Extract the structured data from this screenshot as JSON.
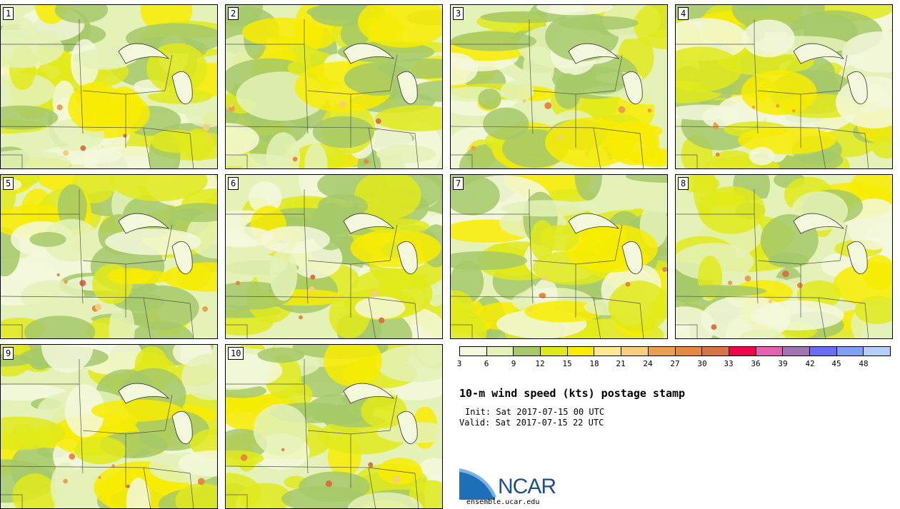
{
  "panels": [
    "1",
    "2",
    "3",
    "4",
    "5",
    "6",
    "7",
    "8",
    "9",
    "10"
  ],
  "colorbar": {
    "colors": [
      "#f3f8dc",
      "#e4f2b8",
      "#a6c96a",
      "#e0ea1b",
      "#f8ec00",
      "#fde98f",
      "#f7cd7e",
      "#eaa050",
      "#e68840",
      "#d77445",
      "#f0044a",
      "#e55fb0",
      "#a173b3",
      "#6b6ef5",
      "#7f9ff6",
      "#b5cdf9"
    ],
    "ticks": [
      "3",
      "6",
      "9",
      "12",
      "15",
      "18",
      "21",
      "24",
      "27",
      "30",
      "33",
      "36",
      "39",
      "42",
      "45",
      "48"
    ]
  },
  "title": "10-m wind speed (kts) postage stamp",
  "init": "Init: Sat 2017-07-15 00 UTC",
  "valid": "Valid: Sat 2017-07-15 22 UTC",
  "logo": {
    "text": "NCAR",
    "url_text": "ensemble.ucar.edu",
    "icon": "ncar-swoosh-icon"
  }
}
